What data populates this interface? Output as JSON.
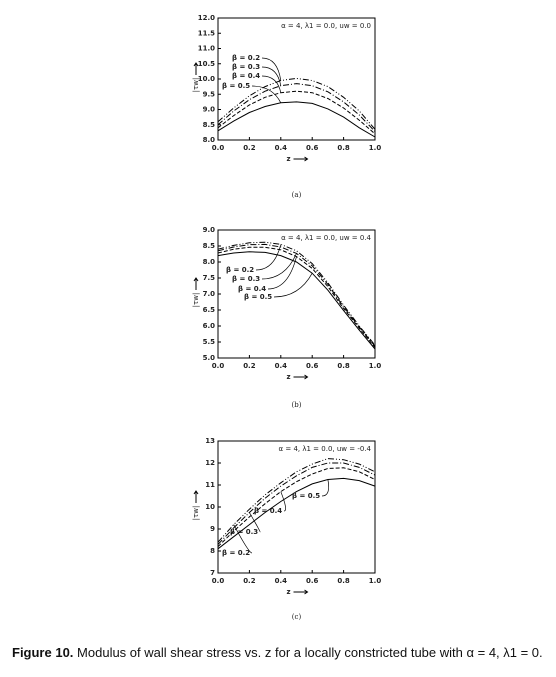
{
  "chart_data": [
    {
      "type": "line",
      "annotation": "α = 4, λ1 = 0.0, uw = 0.0",
      "panel_label": "(a)",
      "xlabel": "z",
      "ylabel": "|τw|",
      "x": [
        0,
        0.1,
        0.2,
        0.3,
        0.4,
        0.5,
        0.6,
        0.7,
        0.8,
        0.9,
        1.0
      ],
      "xlim": [
        0,
        1
      ],
      "ylim": [
        8,
        12
      ],
      "xticks": [
        {
          "value": 0,
          "label": "0.0"
        },
        {
          "value": 0.2,
          "label": "0.2"
        },
        {
          "value": 0.4,
          "label": "0.4"
        },
        {
          "value": 0.6,
          "label": "0.6"
        },
        {
          "value": 0.8,
          "label": "0.8"
        },
        {
          "value": 1,
          "label": "1.0"
        }
      ],
      "yticks": [
        {
          "value": 8,
          "label": "8.0"
        },
        8.5,
        {
          "value": 9,
          "label": "9.0"
        },
        9.5,
        {
          "value": 10,
          "label": "10.0"
        },
        10.5,
        {
          "value": 11,
          "label": "11.0"
        },
        11.5,
        {
          "value": 12,
          "label": "12.0"
        }
      ],
      "series": [
        {
          "name": "β = 0.2",
          "color": "#000000",
          "dash": "6,2,1,2,1,2",
          "values": [
            8.6,
            9.05,
            9.45,
            9.75,
            9.95,
            10.02,
            9.95,
            9.75,
            9.4,
            8.95,
            8.35
          ]
        },
        {
          "name": "β = 0.3",
          "color": "#000000",
          "dash": "6,2,1,2",
          "values": [
            8.5,
            8.95,
            9.32,
            9.6,
            9.78,
            9.85,
            9.78,
            9.58,
            9.25,
            8.82,
            8.28
          ]
        },
        {
          "name": "β = 0.4",
          "color": "#000000",
          "dash": "4,2",
          "values": [
            8.4,
            8.8,
            9.15,
            9.4,
            9.55,
            9.6,
            9.55,
            9.36,
            9.05,
            8.65,
            8.2
          ]
        },
        {
          "name": "β = 0.5",
          "color": "#000000",
          "dash": "none",
          "values": [
            8.3,
            8.62,
            8.9,
            9.1,
            9.22,
            9.25,
            9.2,
            9.02,
            8.75,
            8.4,
            8.1
          ]
        }
      ]
    },
    {
      "type": "line",
      "annotation": "α = 4, λ1 = 0.0, uw = 0.4",
      "panel_label": "(b)",
      "xlabel": "z",
      "ylabel": "|τw|",
      "x": [
        0,
        0.1,
        0.2,
        0.3,
        0.4,
        0.5,
        0.6,
        0.7,
        0.8,
        0.9,
        1.0
      ],
      "xlim": [
        0,
        1
      ],
      "ylim": [
        5,
        9
      ],
      "xticks": [
        {
          "value": 0,
          "label": "0.0"
        },
        {
          "value": 0.2,
          "label": "0.2"
        },
        {
          "value": 0.4,
          "label": "0.4"
        },
        {
          "value": 0.6,
          "label": "0.6"
        },
        {
          "value": 0.8,
          "label": "0.8"
        },
        {
          "value": 1,
          "label": "1.0"
        }
      ],
      "yticks": [
        {
          "value": 5,
          "label": "5.0"
        },
        5.5,
        {
          "value": 6,
          "label": "6.0"
        },
        6.5,
        {
          "value": 7,
          "label": "7.0"
        },
        7.5,
        {
          "value": 8,
          "label": "8.0"
        },
        8.5,
        {
          "value": 9,
          "label": "9.0"
        }
      ],
      "series": [
        {
          "name": "β = 0.2",
          "color": "#000000",
          "dash": "6,2,1,2,1,2",
          "values": [
            8.4,
            8.52,
            8.6,
            8.62,
            8.55,
            8.35,
            7.95,
            7.35,
            6.65,
            6.0,
            5.4
          ]
        },
        {
          "name": "β = 0.3",
          "color": "#000000",
          "dash": "6,2,1,2",
          "values": [
            8.35,
            8.47,
            8.54,
            8.55,
            8.47,
            8.27,
            7.88,
            7.3,
            6.6,
            5.97,
            5.37
          ]
        },
        {
          "name": "β = 0.4",
          "color": "#000000",
          "dash": "4,2",
          "values": [
            8.28,
            8.4,
            8.46,
            8.46,
            8.38,
            8.17,
            7.8,
            7.23,
            6.55,
            5.93,
            5.33
          ]
        },
        {
          "name": "β = 0.5",
          "color": "#000000",
          "dash": "none",
          "values": [
            8.2,
            8.28,
            8.32,
            8.3,
            8.2,
            8.0,
            7.65,
            7.12,
            6.48,
            5.87,
            5.28
          ]
        }
      ]
    },
    {
      "type": "line",
      "annotation": "α = 4, λ1 = 0.0, uw = -0.4",
      "panel_label": "(c)",
      "xlabel": "z",
      "ylabel": "|τw|",
      "x": [
        0,
        0.1,
        0.2,
        0.3,
        0.4,
        0.5,
        0.6,
        0.7,
        0.8,
        0.9,
        1.0
      ],
      "xlim": [
        0,
        1
      ],
      "ylim": [
        7,
        13
      ],
      "xticks": [
        {
          "value": 0,
          "label": "0.0"
        },
        {
          "value": 0.2,
          "label": "0.2"
        },
        {
          "value": 0.4,
          "label": "0.4"
        },
        {
          "value": 0.6,
          "label": "0.6"
        },
        {
          "value": 0.8,
          "label": "0.8"
        },
        {
          "value": 1,
          "label": "1.0"
        }
      ],
      "yticks": [
        7,
        8,
        9,
        10,
        11,
        12,
        13
      ],
      "series": [
        {
          "name": "β = 0.2",
          "color": "#000000",
          "dash": "6,2,1,2,1,2",
          "values": [
            8.4,
            9.2,
            9.9,
            10.55,
            11.1,
            11.6,
            11.95,
            12.2,
            12.15,
            11.95,
            11.6
          ]
        },
        {
          "name": "β = 0.3",
          "color": "#000000",
          "dash": "6,2,1,2",
          "values": [
            8.3,
            9.05,
            9.75,
            10.4,
            10.95,
            11.42,
            11.8,
            12.0,
            12.0,
            11.8,
            11.45
          ]
        },
        {
          "name": "β = 0.4",
          "color": "#000000",
          "dash": "4,2",
          "values": [
            8.2,
            8.9,
            9.55,
            10.15,
            10.7,
            11.15,
            11.5,
            11.75,
            11.78,
            11.6,
            11.25
          ]
        },
        {
          "name": "β = 0.5",
          "color": "#000000",
          "dash": "none",
          "values": [
            8.1,
            8.65,
            9.2,
            9.75,
            10.25,
            10.7,
            11.05,
            11.25,
            11.3,
            11.2,
            10.95
          ]
        }
      ]
    }
  ],
  "caption": {
    "label": "Figure 10.",
    "text": "Modulus of wall shear stress vs. z for a locally constricted tube with α = 4, λ1 = 0."
  }
}
